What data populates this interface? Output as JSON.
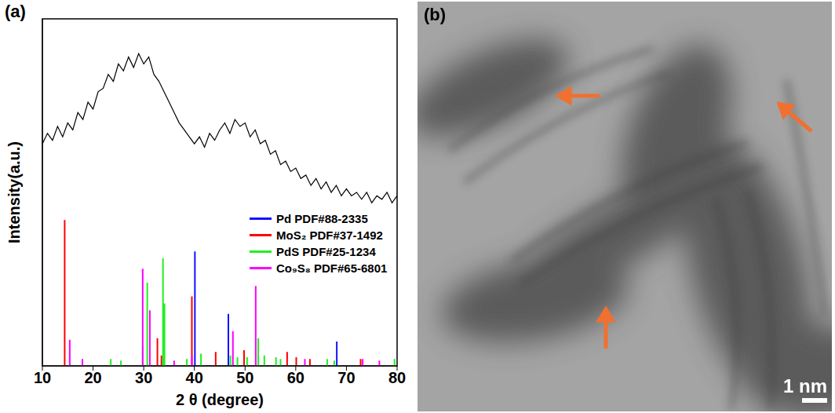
{
  "chart_data": {
    "type": "line",
    "panel_label": "(a)",
    "x_label": "2 θ (degree)",
    "y_label": "Intensity(a.u.)",
    "xlim": [
      10,
      80
    ],
    "xticks": [
      10,
      20,
      30,
      40,
      50,
      60,
      70,
      80
    ],
    "ylim": [
      0,
      100
    ],
    "tick_labels": "x",
    "legend": "lower right",
    "color": "#000000",
    "x": [
      10,
      11,
      12,
      13,
      14,
      15,
      16,
      17,
      18,
      19,
      20,
      21,
      22,
      23,
      24,
      25,
      26,
      27,
      28,
      29,
      30,
      31,
      32,
      33,
      34,
      35,
      36,
      37,
      38,
      39,
      40,
      41,
      42,
      43,
      44,
      45,
      46,
      47,
      48,
      49,
      50,
      51,
      52,
      53,
      54,
      55,
      56,
      57,
      58,
      59,
      60,
      61,
      62,
      63,
      64,
      65,
      66,
      67,
      68,
      69,
      70,
      71,
      72,
      73,
      74,
      75,
      76,
      77,
      78,
      79,
      80
    ],
    "values": [
      64,
      67,
      65,
      69,
      66,
      70,
      68,
      73,
      71,
      76,
      74,
      79,
      80,
      84,
      82,
      87,
      85,
      89,
      86,
      90,
      87,
      89,
      84,
      82,
      79,
      76,
      73,
      70,
      68,
      66,
      64,
      66,
      63,
      67,
      65,
      68,
      70,
      67,
      71,
      69,
      70,
      66,
      68,
      64,
      65,
      61,
      62,
      58,
      59,
      56,
      57,
      54,
      55,
      52,
      54,
      51,
      53,
      50,
      52,
      49,
      51,
      49,
      50,
      48,
      50,
      47,
      49,
      48,
      50,
      47,
      49
    ],
    "series": [
      {
        "name": "Pd PDF#88-2335",
        "color": "#1010ff",
        "type": "stick",
        "x": [
          40.1,
          46.7,
          68.1
        ],
        "values": [
          33,
          15,
          7
        ]
      },
      {
        "name": "MoS₂ PDF#37-1492",
        "color": "#ff0000",
        "type": "stick",
        "x": [
          14.4,
          32.7,
          33.5,
          39.5,
          44.2,
          49.8,
          58.3,
          60.1,
          62.8,
          72.8
        ],
        "values": [
          42,
          8,
          3,
          20,
          4,
          4.5,
          4,
          2.5,
          2,
          2
        ]
      },
      {
        "name": "PdS PDF#25-1234",
        "color": "#22ee22",
        "type": "stick",
        "x": [
          23.5,
          25.5,
          29.8,
          30.7,
          33.8,
          34.1,
          38.5,
          41.3,
          47.1,
          48.5,
          50.4,
          52.6,
          53.8,
          56.1,
          57.0,
          66.2,
          67.6,
          79.5
        ],
        "values": [
          2,
          1.5,
          6,
          24,
          31,
          18,
          2,
          3.5,
          3,
          2.5,
          2.5,
          8,
          3,
          2.5,
          2,
          2,
          1.5,
          2
        ]
      },
      {
        "name": "Co₉S₈ PDF#65-6801",
        "color": "#ff00ff",
        "type": "stick",
        "x": [
          15.4,
          17.9,
          29.8,
          31.2,
          36.0,
          39.5,
          47.6,
          52.1,
          61.8,
          73.2,
          76.5
        ],
        "values": [
          7.5,
          2,
          28,
          16,
          1.5,
          3,
          10,
          23,
          2,
          2,
          1.5
        ]
      }
    ]
  },
  "image": {
    "panel_label": "(b)",
    "scale_bar": "1 nm"
  }
}
